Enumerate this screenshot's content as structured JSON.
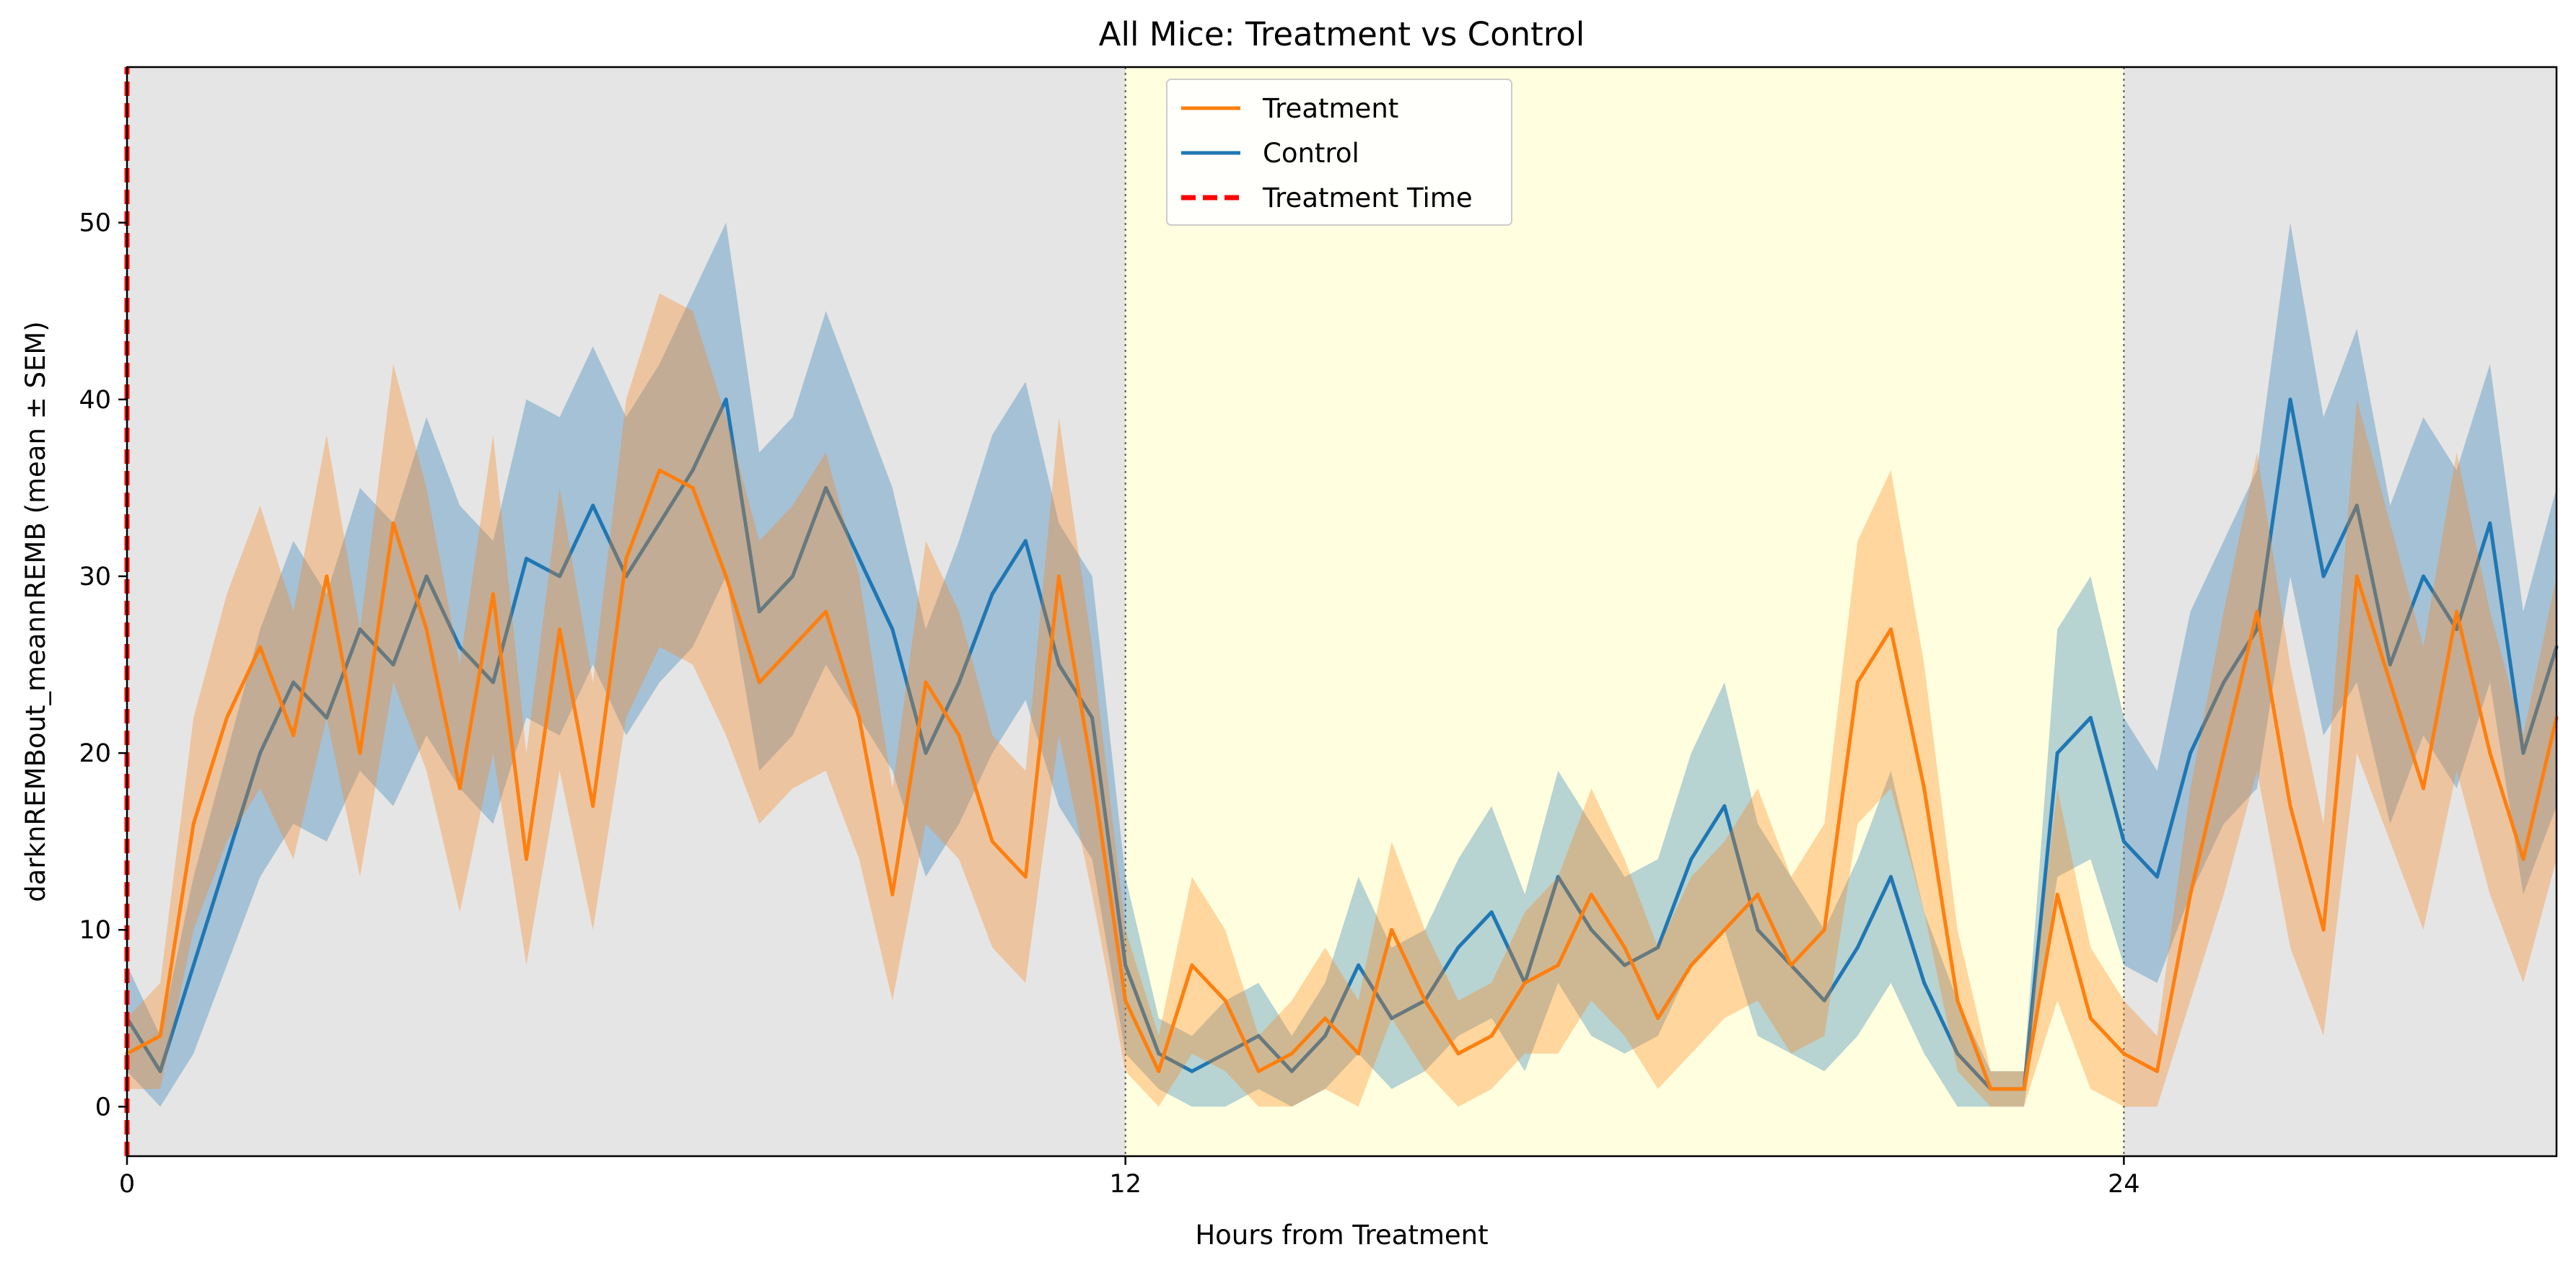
{
  "chart_data": {
    "type": "line",
    "title": "All Mice: Treatment vs Control",
    "xlabel": "Hours from Treatment",
    "ylabel": "darknREMBout_meannREMB (mean ± SEM)",
    "xlim": [
      0,
      29.2
    ],
    "ylim": [
      -2.8,
      58.8
    ],
    "xticks": [
      0,
      12,
      24
    ],
    "xtick_labels": [
      "0",
      "12",
      "24"
    ],
    "yticks": [
      0,
      10,
      20,
      30,
      40,
      50
    ],
    "ytick_labels": [
      "0",
      "10",
      "20",
      "30",
      "40",
      "50"
    ],
    "grid": false,
    "legend_position": "top-center",
    "background_bands": [
      {
        "x0": 0,
        "x1": 12,
        "color": "#e5e5e5",
        "phase": "dark"
      },
      {
        "x0": 12,
        "x1": 24,
        "color": "#ffffe0",
        "phase": "light"
      },
      {
        "x0": 24,
        "x1": 29.2,
        "color": "#e5e5e5",
        "phase": "dark"
      }
    ],
    "phase_boundaries": [
      12,
      24
    ],
    "treatment_time": 0,
    "series": [
      {
        "name": "Treatment",
        "color": "#ff7f0e",
        "band": "mean ± SEM",
        "x": [
          0,
          0.4,
          0.8,
          1.2,
          1.6,
          2,
          2.4,
          2.8,
          3.2,
          3.6,
          4,
          4.4,
          4.8,
          5.2,
          5.6,
          6,
          6.4,
          6.8,
          7.2,
          7.6,
          8,
          8.4,
          8.8,
          9.2,
          9.6,
          10,
          10.4,
          10.8,
          11.2,
          11.6,
          12,
          12.4,
          12.8,
          13.2,
          13.6,
          14,
          14.4,
          14.8,
          15.2,
          15.6,
          16,
          16.4,
          16.8,
          17.2,
          17.6,
          18,
          18.4,
          18.8,
          19.2,
          19.6,
          20,
          20.4,
          20.8,
          21.2,
          21.6,
          22,
          22.4,
          22.8,
          23.2,
          23.6,
          24,
          24.4,
          24.8,
          25.2,
          25.6,
          26,
          26.4,
          26.8,
          27.2,
          27.6,
          28,
          28.4,
          28.8,
          29.2
        ],
        "values": [
          3,
          4,
          16,
          22,
          26,
          21,
          30,
          20,
          33,
          27,
          18,
          29,
          14,
          27,
          17,
          31,
          36,
          35,
          30,
          24,
          26,
          28,
          22,
          12,
          24,
          21,
          15,
          13,
          30,
          19,
          6,
          2,
          8,
          6,
          2,
          3,
          5,
          3,
          10,
          6,
          3,
          4,
          7,
          8,
          12,
          9,
          5,
          8,
          10,
          12,
          8,
          10,
          24,
          27,
          18,
          6,
          1,
          1,
          12,
          5,
          3,
          2,
          12,
          20,
          28,
          17,
          10,
          30,
          24,
          18,
          28,
          20,
          14,
          22
        ],
        "sem": [
          2,
          3,
          6,
          7,
          8,
          7,
          8,
          7,
          9,
          8,
          7,
          9,
          6,
          8,
          7,
          9,
          10,
          10,
          9,
          8,
          8,
          9,
          8,
          6,
          8,
          7,
          6,
          6,
          9,
          7,
          4,
          2,
          5,
          4,
          2,
          3,
          4,
          3,
          5,
          4,
          3,
          3,
          4,
          5,
          6,
          5,
          4,
          5,
          5,
          6,
          5,
          6,
          8,
          9,
          7,
          4,
          1,
          1,
          6,
          4,
          3,
          2,
          6,
          8,
          9,
          8,
          6,
          10,
          9,
          8,
          9,
          8,
          7,
          8
        ]
      },
      {
        "name": "Control",
        "color": "#1f77b4",
        "band": "mean ± SEM",
        "x": [
          0,
          0.4,
          0.8,
          1.2,
          1.6,
          2,
          2.4,
          2.8,
          3.2,
          3.6,
          4,
          4.4,
          4.8,
          5.2,
          5.6,
          6,
          6.4,
          6.8,
          7.2,
          7.6,
          8,
          8.4,
          8.8,
          9.2,
          9.6,
          10,
          10.4,
          10.8,
          11.2,
          11.6,
          12,
          12.4,
          12.8,
          13.2,
          13.6,
          14,
          14.4,
          14.8,
          15.2,
          15.6,
          16,
          16.4,
          16.8,
          17.2,
          17.6,
          18,
          18.4,
          18.8,
          19.2,
          19.6,
          20,
          20.4,
          20.8,
          21.2,
          21.6,
          22,
          22.4,
          22.8,
          23.2,
          23.6,
          24,
          24.4,
          24.8,
          25.2,
          25.6,
          26,
          26.4,
          26.8,
          27.2,
          27.6,
          28,
          28.4,
          28.8,
          29.2
        ],
        "values": [
          5,
          2,
          8,
          14,
          20,
          24,
          22,
          27,
          25,
          30,
          26,
          24,
          31,
          30,
          34,
          30,
          33,
          36,
          40,
          28,
          30,
          35,
          31,
          27,
          20,
          24,
          29,
          32,
          25,
          22,
          8,
          3,
          2,
          3,
          4,
          2,
          4,
          8,
          5,
          6,
          9,
          11,
          7,
          13,
          10,
          8,
          9,
          14,
          17,
          10,
          8,
          6,
          9,
          13,
          7,
          3,
          1,
          1,
          20,
          22,
          15,
          13,
          20,
          24,
          27,
          40,
          30,
          34,
          25,
          30,
          27,
          33,
          20,
          26
        ],
        "sem": [
          3,
          2,
          5,
          6,
          7,
          8,
          7,
          8,
          8,
          9,
          8,
          8,
          9,
          9,
          9,
          9,
          9,
          10,
          10,
          9,
          9,
          10,
          9,
          8,
          7,
          8,
          9,
          9,
          8,
          8,
          5,
          2,
          2,
          3,
          3,
          2,
          3,
          5,
          4,
          4,
          5,
          6,
          5,
          6,
          6,
          5,
          5,
          6,
          7,
          6,
          5,
          4,
          5,
          6,
          4,
          3,
          1,
          1,
          7,
          8,
          7,
          6,
          8,
          8,
          9,
          10,
          9,
          10,
          9,
          9,
          9,
          9,
          8,
          9
        ]
      },
      {
        "name": "Treatment Time",
        "color": "#ff0000",
        "style": "dashed",
        "x": [
          0,
          0
        ],
        "values": [
          -2.8,
          58.8
        ]
      }
    ]
  }
}
